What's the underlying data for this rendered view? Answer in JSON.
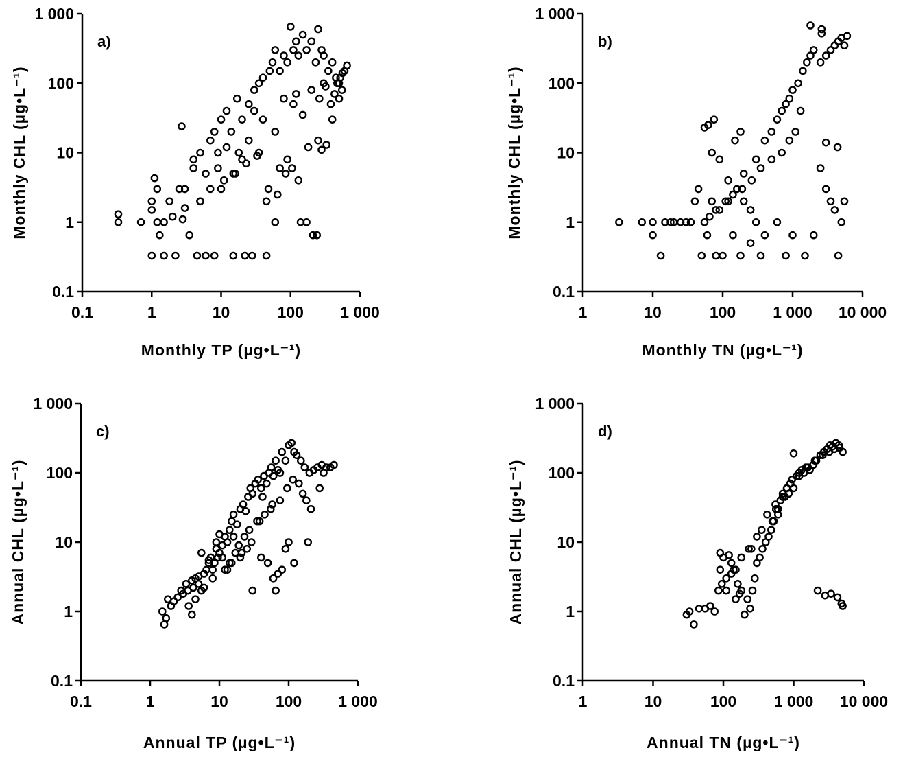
{
  "figure": {
    "colors": {
      "ink": "#000000",
      "background": "#ffffff"
    }
  },
  "chart_data": [
    {
      "type": "scatter",
      "panel_label": "a)",
      "xlabel": "Monthly  TP  (µg•L⁻¹)",
      "ylabel": "Monthly  CHL  (µg•L⁻¹)",
      "xscale": "log",
      "yscale": "log",
      "xlim": [
        0.1,
        1000
      ],
      "ylim": [
        0.1,
        1000
      ],
      "xticks": [
        "0.1",
        "1",
        "10",
        "100",
        "1 000"
      ],
      "yticks": [
        "0.1",
        "1",
        "10",
        "100",
        "1 000"
      ],
      "grid": false,
      "series": [
        {
          "x": [
            0.33,
            0.33,
            0.7,
            1,
            1,
            1,
            1.1,
            1.2,
            1.3,
            1.5,
            1.8,
            2.2,
            2.5,
            2.8,
            3,
            3.5,
            4,
            4.5,
            5,
            5,
            6,
            7,
            8,
            9,
            10,
            12,
            14,
            15,
            17,
            20,
            22,
            25,
            28,
            30,
            35,
            40,
            45,
            50,
            55,
            60,
            70,
            80,
            90,
            100,
            110,
            120,
            130,
            150,
            170,
            200,
            230,
            250,
            280,
            300,
            350,
            400,
            450,
            500,
            550,
            600,
            650,
            2.7,
            1.2,
            8,
            6,
            18,
            25,
            30,
            40,
            60,
            80,
            110,
            150,
            200,
            120,
            300,
            15,
            20,
            10,
            12,
            35,
            45,
            70,
            90,
            130,
            180,
            250,
            400,
            500,
            320,
            260,
            60,
            7,
            5,
            3,
            2,
            1.5,
            4,
            9,
            11,
            16,
            23,
            33,
            48,
            65,
            85,
            105,
            140,
            170,
            210,
            240,
            280,
            330,
            380,
            430,
            470,
            520,
            560
          ],
          "y": [
            1.3,
            1,
            1,
            2,
            1.5,
            0.33,
            4.3,
            3,
            0.65,
            0.33,
            2,
            0.33,
            3,
            1.1,
            3,
            0.65,
            6,
            0.33,
            2,
            10,
            0.33,
            15,
            0.33,
            10,
            30,
            40,
            20,
            0.33,
            60,
            30,
            0.33,
            50,
            0.33,
            80,
            100,
            120,
            0.33,
            150,
            200,
            300,
            150,
            250,
            200,
            650,
            300,
            400,
            250,
            500,
            300,
            400,
            200,
            600,
            300,
            250,
            150,
            200,
            120,
            100,
            80,
            150,
            180,
            24,
            1,
            20,
            5,
            10,
            15,
            40,
            30,
            20,
            60,
            50,
            35,
            80,
            70,
            100,
            5,
            8,
            3,
            12,
            10,
            2,
            6,
            8,
            4,
            12,
            15,
            30,
            60,
            90,
            60,
            1,
            3,
            2,
            1.6,
            1.2,
            1,
            8,
            6,
            4,
            5,
            7,
            9,
            3,
            2.5,
            5,
            6,
            1,
            1,
            0.65,
            0.65,
            11,
            13,
            50,
            70,
            100,
            120,
            140
          ]
        }
      ]
    },
    {
      "type": "scatter",
      "panel_label": "b)",
      "xlabel": "Monthly  TN  (µg•L⁻¹)",
      "ylabel": "Monthly  CHL  (µg•L⁻¹)",
      "xscale": "log",
      "yscale": "log",
      "xlim": [
        1,
        10000
      ],
      "ylim": [
        0.1,
        1000
      ],
      "xticks": [
        "1",
        "10",
        "100",
        "1 000",
        "10 000"
      ],
      "yticks": [
        "0.1",
        "1",
        "10",
        "100",
        "1 000"
      ],
      "grid": false,
      "series": [
        {
          "x": [
            3.3,
            7,
            10,
            10,
            13,
            15,
            18,
            20,
            25,
            30,
            35,
            40,
            45,
            50,
            55,
            60,
            70,
            80,
            90,
            100,
            120,
            140,
            160,
            180,
            200,
            250,
            300,
            350,
            400,
            500,
            600,
            700,
            800,
            900,
            1000,
            1200,
            1400,
            1600,
            1800,
            2000,
            2500,
            3000,
            3500,
            4000,
            4500,
            5000,
            5500,
            6000,
            55,
            62,
            75,
            150,
            180,
            1800,
            2600,
            2600,
            4000,
            4400,
            2000,
            1500,
            800,
            1000,
            600,
            400,
            300,
            250,
            200,
            120,
            90,
            70,
            3000,
            3500,
            4000,
            5000,
            4500,
            5500,
            2500,
            3000,
            1300,
            1100,
            900,
            700,
            500,
            350,
            260,
            190,
            140,
            110,
            80,
            65
          ],
          "y": [
            1,
            1,
            1,
            0.65,
            0.33,
            1,
            1,
            1,
            1,
            1,
            1,
            2,
            3,
            0.33,
            1,
            0.65,
            2,
            0.33,
            1.5,
            0.33,
            2,
            0.65,
            3,
            0.33,
            5,
            0.5,
            8,
            0.33,
            15,
            20,
            30,
            40,
            50,
            60,
            80,
            100,
            150,
            200,
            250,
            300,
            200,
            250,
            300,
            350,
            400,
            450,
            350,
            480,
            23,
            25,
            30,
            15,
            20,
            680,
            520,
            600,
            350,
            12,
            0.65,
            0.33,
            0.33,
            0.65,
            1,
            0.65,
            1,
            1.5,
            2,
            4,
            8,
            10,
            3,
            2,
            1.5,
            1,
            0.33,
            2,
            6,
            14,
            40,
            20,
            15,
            10,
            8,
            6,
            4,
            3,
            2.5,
            2,
            1.5,
            1.2
          ]
        }
      ]
    },
    {
      "type": "scatter",
      "panel_label": "c)",
      "xlabel": "Annual  TP  (µg•L⁻¹)",
      "ylabel": "Annual  CHL  (µg•L⁻¹)",
      "xscale": "log",
      "yscale": "log",
      "xlim": [
        0.1,
        1000
      ],
      "ylim": [
        0.1,
        1000
      ],
      "xticks": [
        "0.1",
        "1",
        "10",
        "100",
        "1 000"
      ],
      "yticks": [
        "0.1",
        "1",
        "10",
        "100",
        "1 000"
      ],
      "grid": false,
      "series": [
        {
          "x": [
            1.5,
            1.6,
            1.7,
            1.8,
            2,
            2.2,
            2.5,
            2.8,
            3,
            3.3,
            3.6,
            4,
            4.2,
            4.5,
            5,
            5.5,
            6,
            6.5,
            7,
            7.5,
            8,
            8.5,
            9,
            10,
            11,
            12,
            13,
            14,
            15,
            16,
            18,
            20,
            22,
            24,
            26,
            28,
            30,
            33,
            36,
            40,
            44,
            48,
            52,
            56,
            60,
            65,
            70,
            75,
            80,
            90,
            100,
            110,
            120,
            130,
            150,
            170,
            200,
            230,
            260,
            300,
            350,
            400,
            450,
            6,
            8,
            12,
            15,
            20,
            25,
            30,
            40,
            50,
            60,
            65,
            70,
            80,
            90,
            100,
            120,
            180,
            190,
            7,
            9,
            10,
            11,
            13,
            17,
            19,
            23,
            27,
            35,
            45,
            55,
            5,
            4,
            3.5,
            4.5,
            5.5,
            9.5,
            14,
            16,
            21,
            29,
            38,
            42,
            58,
            75,
            95,
            115,
            140,
            160,
            210,
            280,
            320
          ],
          "y": [
            1,
            0.65,
            0.8,
            1.5,
            1.2,
            1.4,
            1.6,
            2,
            1.8,
            2.5,
            1.2,
            0.9,
            2.2,
            3,
            2.5,
            7,
            3.5,
            4,
            5,
            6,
            4,
            5,
            8,
            7,
            9,
            12,
            10,
            15,
            20,
            25,
            18,
            30,
            35,
            28,
            45,
            60,
            50,
            70,
            80,
            60,
            90,
            70,
            100,
            120,
            90,
            150,
            110,
            100,
            200,
            150,
            250,
            270,
            200,
            180,
            150,
            120,
            100,
            110,
            120,
            130,
            120,
            120,
            130,
            2.2,
            3,
            4,
            5,
            6,
            8,
            2,
            6,
            5,
            3,
            2,
            3.5,
            4,
            8,
            10,
            5,
            40,
            10,
            5.5,
            10,
            13,
            6,
            4,
            7,
            9,
            12,
            15,
            20,
            25,
            30,
            3.2,
            2.8,
            2,
            1.5,
            2,
            6,
            5,
            12,
            7,
            10,
            20,
            45,
            35,
            40,
            60,
            80,
            70,
            50,
            30,
            60,
            100
          ]
        }
      ]
    },
    {
      "type": "scatter",
      "panel_label": "d)",
      "xlabel": "Annual  TN  (µg•L⁻¹)",
      "ylabel": "Annual  CHL  (µg•L⁻¹)",
      "xscale": "log",
      "yscale": "log",
      "xlim": [
        1,
        10000
      ],
      "ylim": [
        0.1,
        1000
      ],
      "xticks": [
        "1",
        "10",
        "100",
        "1 000",
        "10 000"
      ],
      "yticks": [
        "0.1",
        "1",
        "10",
        "100",
        "1 000"
      ],
      "grid": false,
      "series": [
        {
          "x": [
            30,
            33,
            38,
            45,
            55,
            65,
            75,
            85,
            90,
            95,
            100,
            110,
            120,
            130,
            140,
            150,
            160,
            170,
            180,
            200,
            220,
            240,
            260,
            280,
            300,
            330,
            360,
            400,
            440,
            480,
            520,
            560,
            600,
            650,
            700,
            750,
            800,
            850,
            900,
            950,
            1000,
            1100,
            1200,
            1300,
            1400,
            1500,
            1700,
            1900,
            2100,
            2400,
            2700,
            3000,
            3300,
            3600,
            4000,
            4500,
            5000,
            2200,
            2800,
            3400,
            4200,
            4800,
            5000,
            1000,
            800,
            600,
            500,
            350,
            250,
            150,
            110,
            90,
            130,
            180,
            230,
            300,
            420,
            550,
            700,
            900,
            1200,
            1600,
            2000,
            2600,
            3200,
            3800,
            4400
          ],
          "y": [
            0.9,
            1,
            0.65,
            1.1,
            1.1,
            1.2,
            1,
            2,
            7,
            2.5,
            6,
            2,
            6.5,
            3.5,
            4,
            1.5,
            2.5,
            1.8,
            2,
            0.9,
            1.5,
            1.1,
            2,
            3,
            5,
            6,
            8,
            10,
            12,
            15,
            20,
            30,
            25,
            40,
            50,
            45,
            60,
            50,
            70,
            80,
            60,
            90,
            100,
            110,
            100,
            120,
            110,
            130,
            150,
            180,
            200,
            220,
            250,
            240,
            270,
            230,
            200,
            2,
            1.7,
            1.8,
            1.6,
            1.3,
            1.2,
            190,
            60,
            30,
            20,
            15,
            8,
            4,
            3,
            4,
            5,
            6,
            8,
            12,
            25,
            35,
            45,
            70,
            90,
            120,
            150,
            180,
            200,
            220,
            250
          ]
        }
      ]
    }
  ]
}
